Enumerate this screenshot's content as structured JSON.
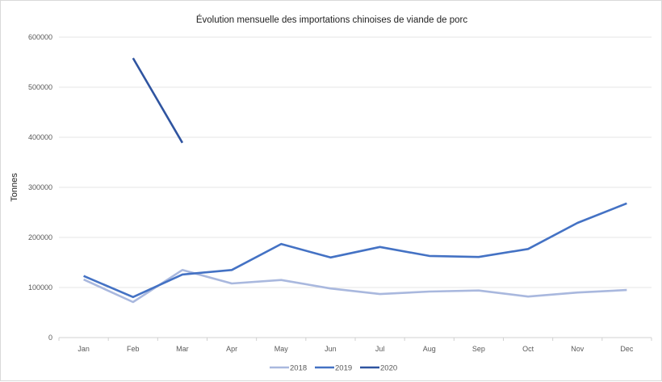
{
  "chart_data": {
    "type": "line",
    "title": "Évolution mensuelle des importations chinoises de viande de porc",
    "xlabel": "",
    "ylabel": "Tonnes",
    "categories": [
      "Jan",
      "Feb",
      "Mar",
      "Apr",
      "May",
      "Jun",
      "Jul",
      "Aug",
      "Sep",
      "Oct",
      "Nov",
      "Dec"
    ],
    "ylim": [
      0,
      600000
    ],
    "yticks": [
      0,
      100000,
      200000,
      300000,
      400000,
      500000,
      600000
    ],
    "ytick_labels": [
      "0",
      "100000",
      "200000",
      "300000",
      "400000",
      "500000",
      "600000"
    ],
    "grid": true,
    "legend_position": "bottom",
    "series": [
      {
        "name": "2018",
        "color": "#a9b8de",
        "values": [
          116000,
          71000,
          135000,
          108000,
          115000,
          98000,
          87000,
          92000,
          94000,
          82000,
          90000,
          95000
        ]
      },
      {
        "name": "2019",
        "color": "#4472c4",
        "values": [
          123000,
          81000,
          126000,
          135000,
          187000,
          160000,
          181000,
          163000,
          161000,
          177000,
          229000,
          268000
        ]
      },
      {
        "name": "2020",
        "color": "#2f54a0",
        "values": [
          null,
          558000,
          389000,
          null,
          null,
          null,
          null,
          null,
          null,
          null,
          null,
          null
        ]
      }
    ]
  }
}
